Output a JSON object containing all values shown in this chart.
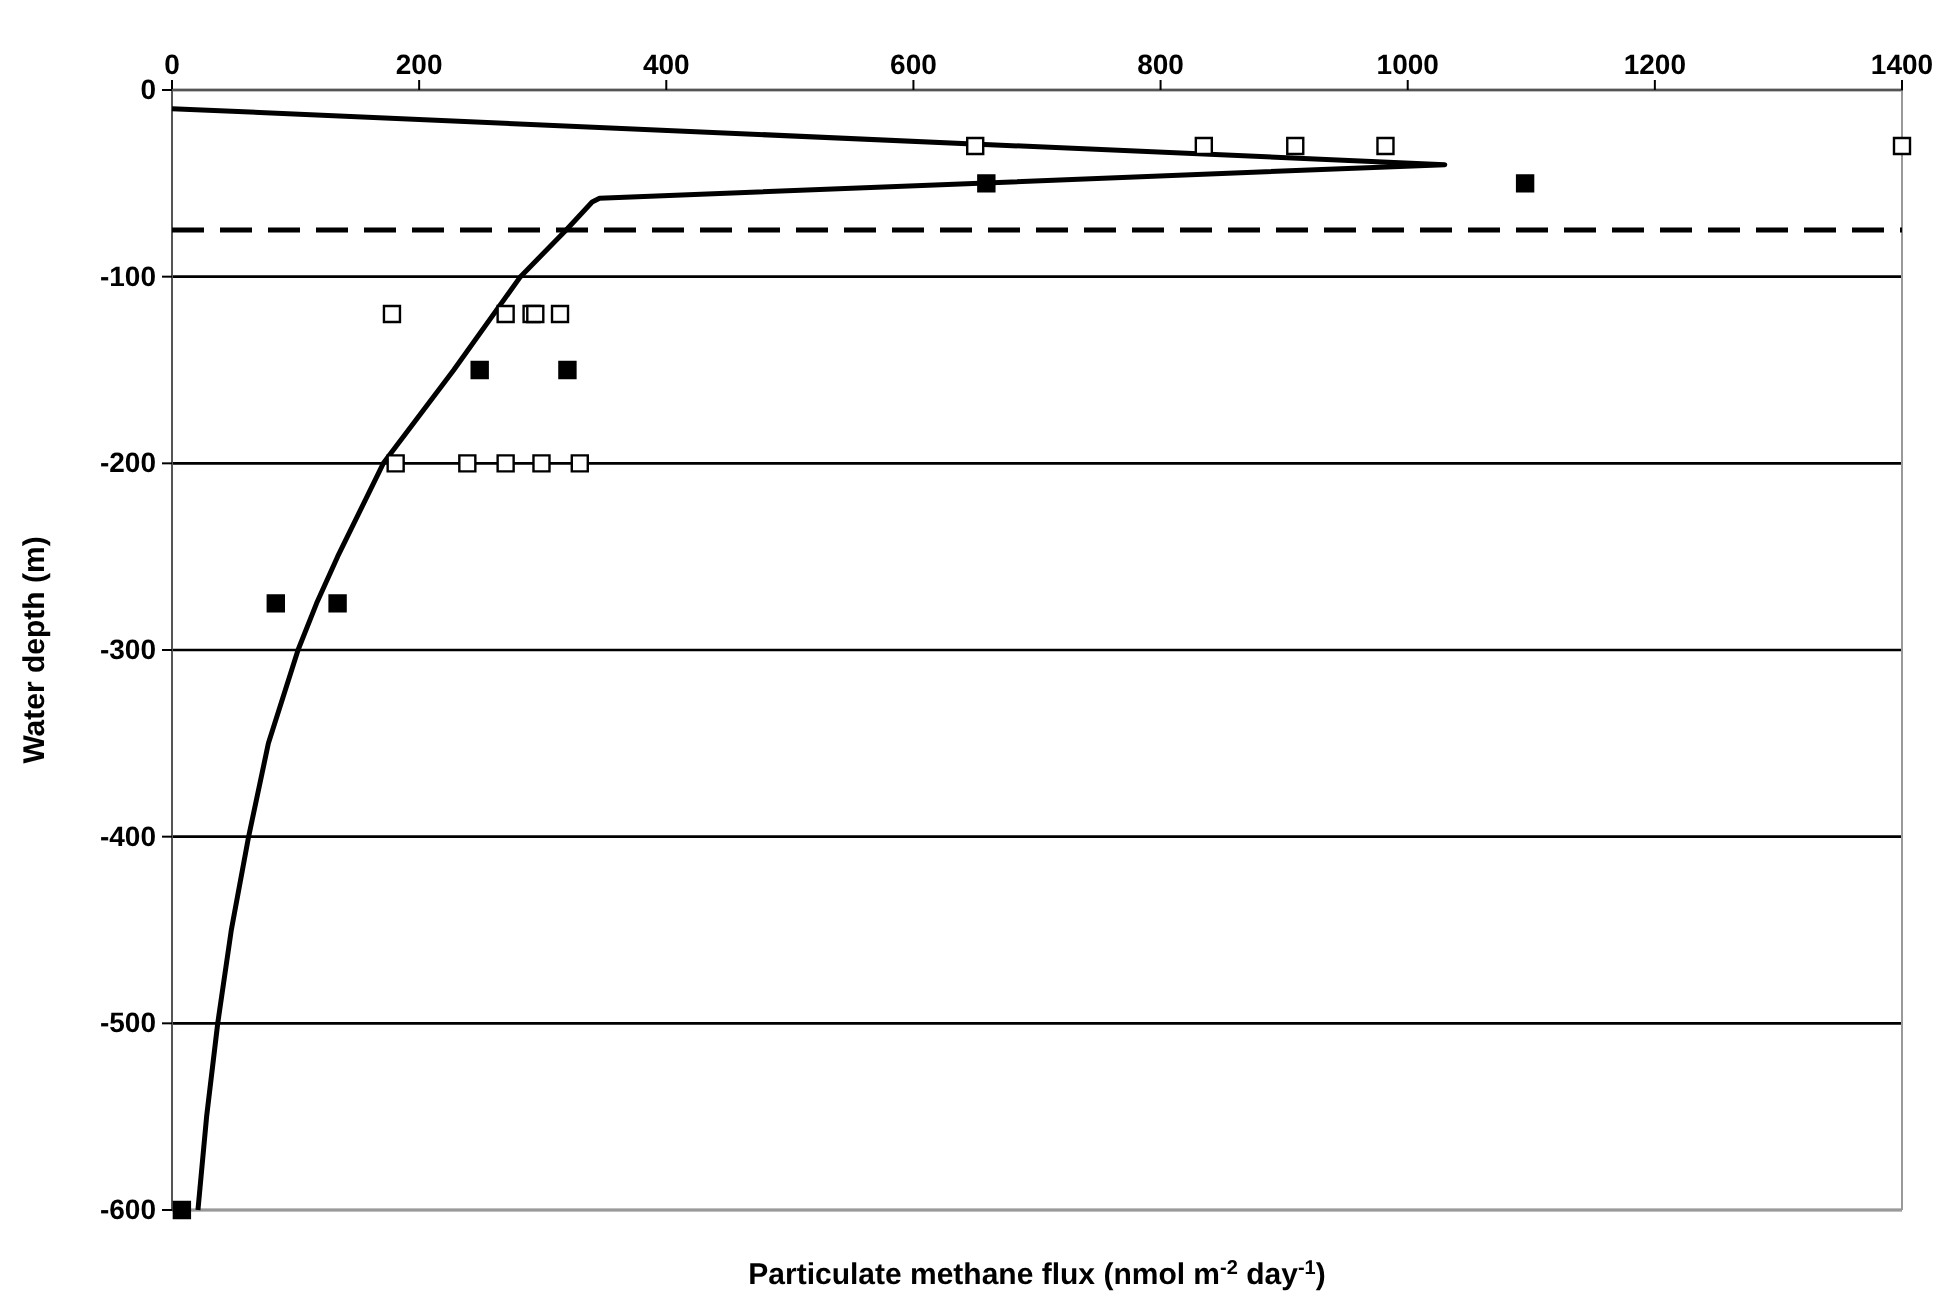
{
  "chart_data": {
    "type": "scatter",
    "xlabel": "Particulate methane flux (nmol m$^{-2}$ day$^{-1}$)",
    "ylabel": "Water depth (m)",
    "xlim": [
      0,
      1400
    ],
    "xticks": [
      0,
      200,
      400,
      600,
      800,
      1000,
      1200,
      1400
    ],
    "ylim": [
      -600,
      0
    ],
    "yticks": [
      -600,
      -500,
      -400,
      -300,
      -200,
      -100,
      0
    ],
    "grid": "y",
    "marker": "square",
    "ref_lines": [
      {
        "axis": "y",
        "value": -75,
        "line_style": "dashed",
        "color": "#000000"
      }
    ],
    "series": [
      {
        "color": "#ffffff",
        "x": [
          650,
          835,
          909,
          982,
          1400,
          178,
          270,
          291,
          294,
          314,
          181,
          239,
          270,
          299,
          330
        ],
        "values": [
          -30,
          -30,
          -30,
          -30,
          -30,
          -120,
          -120,
          -120,
          -120,
          -120,
          -200,
          -200,
          -200,
          -200,
          -200
        ]
      },
      {
        "color": "#000000",
        "x": [
          659,
          1095,
          249,
          320,
          84,
          134,
          8
        ],
        "values": [
          -50,
          -50,
          -150,
          -150,
          -275,
          -275,
          -600
        ]
      },
      {
        "type": "line",
        "color": "#000000",
        "marker": "none",
        "x": [
          0,
          1030,
          346,
          340,
          319,
          282,
          228,
          171,
          134,
          117,
          102,
          78,
          62,
          48,
          37,
          28,
          21
        ],
        "values": [
          -10,
          -40,
          -58,
          -60,
          -75,
          -100,
          -150,
          -200,
          -250,
          -275,
          -300,
          -350,
          -400,
          -450,
          -500,
          -550,
          -600
        ]
      }
    ]
  }
}
